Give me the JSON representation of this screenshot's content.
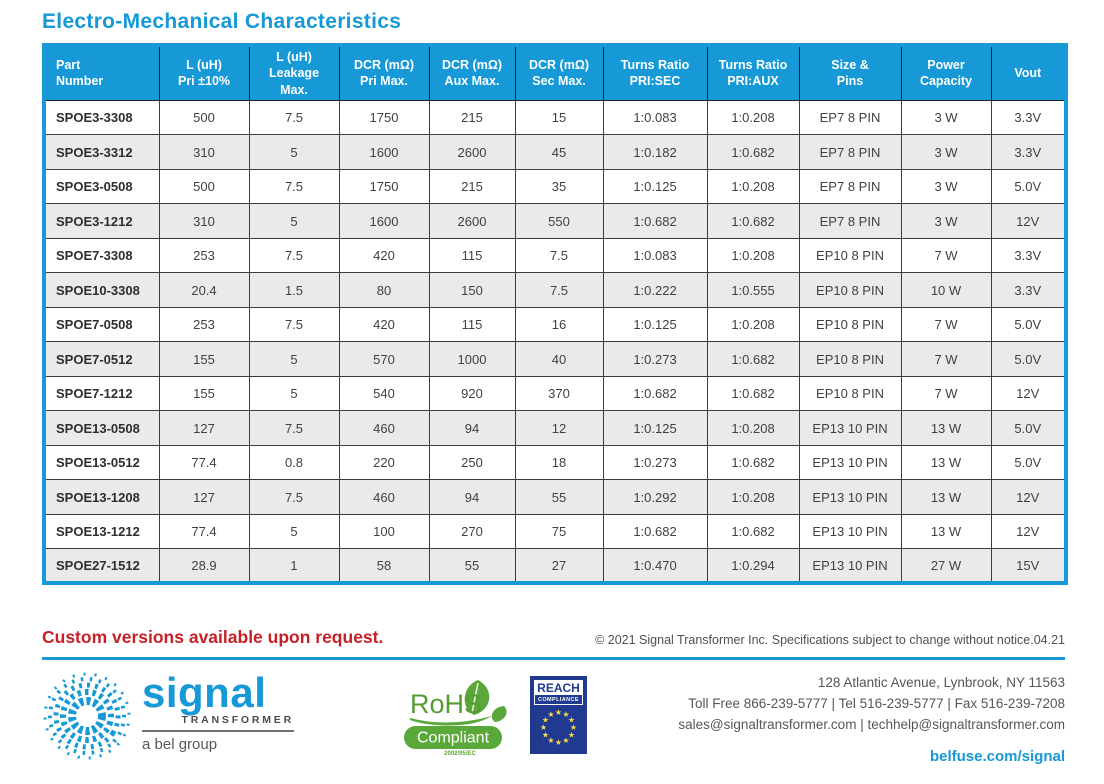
{
  "page": {
    "title": "Electro-Mechanical Characteristics"
  },
  "table": {
    "columns": [
      "Part\nNumber",
      "L (uH)\nPri ±10%",
      "L (uH)\nLeakage\nMax.",
      "DCR (mΩ)\nPri Max.",
      "DCR (mΩ)\nAux Max.",
      "DCR (mΩ)\nSec Max.",
      "Turns Ratio\nPRI:SEC",
      "Turns Ratio\nPRI:AUX",
      "Size &\nPins",
      "Power\nCapacity",
      "Vout"
    ],
    "rows": [
      [
        "SPOE3-3308",
        "500",
        "7.5",
        "1750",
        "215",
        "15",
        "1:0.083",
        "1:0.208",
        "EP7 8 PIN",
        "3 W",
        "3.3V"
      ],
      [
        "SPOE3-3312",
        "310",
        "5",
        "1600",
        "2600",
        "45",
        "1:0.182",
        "1:0.682",
        "EP7 8 PIN",
        "3 W",
        "3.3V"
      ],
      [
        "SPOE3-0508",
        "500",
        "7.5",
        "1750",
        "215",
        "35",
        "1:0.125",
        "1:0.208",
        "EP7 8 PIN",
        "3 W",
        "5.0V"
      ],
      [
        "SPOE3-1212",
        "310",
        "5",
        "1600",
        "2600",
        "550",
        "1:0.682",
        "1:0.682",
        "EP7 8 PIN",
        "3 W",
        "12V"
      ],
      [
        "SPOE7-3308",
        "253",
        "7.5",
        "420",
        "115",
        "7.5",
        "1:0.083",
        "1:0.208",
        "EP10 8 PIN",
        "7 W",
        "3.3V"
      ],
      [
        "SPOE10-3308",
        "20.4",
        "1.5",
        "80",
        "150",
        "7.5",
        "1:0.222",
        "1:0.555",
        "EP10 8 PIN",
        "10 W",
        "3.3V"
      ],
      [
        "SPOE7-0508",
        "253",
        "7.5",
        "420",
        "115",
        "16",
        "1:0.125",
        "1:0.208",
        "EP10 8 PIN",
        "7 W",
        "5.0V"
      ],
      [
        "SPOE7-0512",
        "155",
        "5",
        "570",
        "1000",
        "40",
        "1:0.273",
        "1:0.682",
        "EP10 8 PIN",
        "7 W",
        "5.0V"
      ],
      [
        "SPOE7-1212",
        "155",
        "5",
        "540",
        "920",
        "370",
        "1:0.682",
        "1:0.682",
        "EP10 8 PIN",
        "7 W",
        "12V"
      ],
      [
        "SPOE13-0508",
        "127",
        "7.5",
        "460",
        "94",
        "12",
        "1:0.125",
        "1:0.208",
        "EP13 10 PIN",
        "13 W",
        "5.0V"
      ],
      [
        "SPOE13-0512",
        "77.4",
        "0.8",
        "220",
        "250",
        "18",
        "1:0.273",
        "1:0.682",
        "EP13 10 PIN",
        "13 W",
        "5.0V"
      ],
      [
        "SPOE13-1208",
        "127",
        "7.5",
        "460",
        "94",
        "55",
        "1:0.292",
        "1:0.208",
        "EP13 10 PIN",
        "13 W",
        "12V"
      ],
      [
        "SPOE13-1212",
        "77.4",
        "5",
        "100",
        "270",
        "75",
        "1:0.682",
        "1:0.682",
        "EP13 10 PIN",
        "13 W",
        "12V"
      ],
      [
        "SPOE27-1512",
        "28.9",
        "1",
        "58",
        "55",
        "27",
        "1:0.470",
        "1:0.294",
        "EP13 10 PIN",
        "27 W",
        "15V"
      ]
    ]
  },
  "footer": {
    "custom_note": "Custom versions available upon request.",
    "copyright": "© 2021 Signal Transformer Inc. Specifications subject to change without notice.04.21",
    "logo": {
      "brand": "signal",
      "sub": "TRANSFORMER",
      "group": "a bel group"
    },
    "badges": {
      "rohs_title": "RoHS",
      "rohs_sub": "Compliant",
      "rohs_directive": "2002/95/EC",
      "reach_title": "REACH",
      "reach_sub": "COMPLIANCE"
    },
    "contact": {
      "address": "128 Atlantic Avenue, Lynbrook, NY 11563",
      "phones": "Toll Free 866-239-5777  |  Tel 516-239-5777  |  Fax 516-239-7208",
      "emails": "sales@signaltransformer.com  |  techhelp@signaltransformer.com",
      "website": "belfuse.com/signal"
    }
  },
  "colors": {
    "accent_blue": "#1699d6",
    "note_red": "#c62127",
    "rohs_green": "#5aa83a",
    "reach_navy": "#1f3a8f",
    "row_stripe": "#e9eaea"
  }
}
